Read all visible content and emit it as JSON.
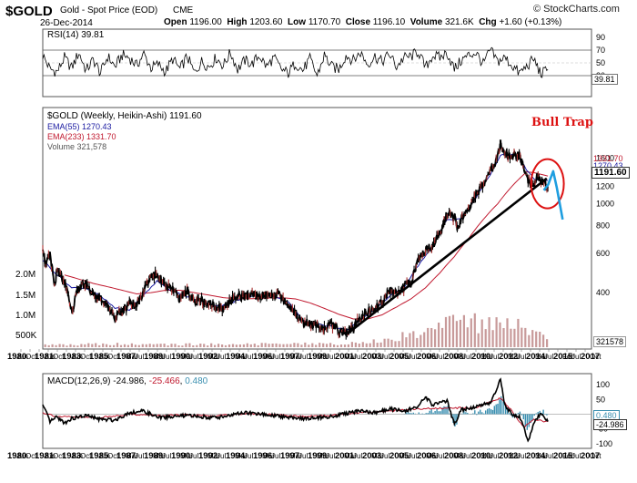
{
  "header": {
    "symbol": "$GOLD",
    "description": "Gold - Spot Price (EOD)",
    "exchange": "CME",
    "date": "26-Dec-2014",
    "watermark": "© StockCharts.com",
    "quote": {
      "open_label": "Open",
      "open": "1196.00",
      "high_label": "High",
      "high": "1203.60",
      "low_label": "Low",
      "low": "1170.70",
      "close_label": "Close",
      "close": "1196.10",
      "volume_label": "Volume",
      "volume": "321.6K",
      "chg_label": "Chg",
      "chg": "+1.60 (+0.13%)"
    }
  },
  "colors": {
    "price": "#000000",
    "ema55": "#1a1aa0",
    "ema233": "#c0182e",
    "volume": "#c89a9a",
    "macd_line": "#000000",
    "macd_signal": "#c0182e",
    "macd_hist": "#3a8fb0",
    "trendline": "#000000",
    "trap_circle": "#dd1111",
    "projection": "#1e9ee0",
    "annotation": "#dd1111"
  },
  "chart_data": [
    {
      "type": "line",
      "panel": "RSI",
      "title": "RSI(14) 39.81",
      "label": "RSI(14)",
      "last_value": 39.81,
      "last_label": "39.81",
      "ylim": [
        0,
        100
      ],
      "y_ticks": [
        30,
        50,
        70,
        90
      ],
      "y_tick_labels": [
        "30",
        "50",
        "70",
        "90"
      ],
      "reference_lines": [
        30,
        70
      ],
      "x": [
        1980.0,
        1980.5,
        1981.0,
        1981.5,
        1982.0,
        1982.5,
        1983.0,
        1983.5,
        1984.0,
        1984.5,
        1985.0,
        1985.5,
        1986.0,
        1986.5,
        1987.0,
        1987.5,
        1988.0,
        1988.5,
        1989.0,
        1989.5,
        1990.0,
        1990.5,
        1991.0,
        1991.5,
        1992.0,
        1992.5,
        1993.0,
        1993.5,
        1994.0,
        1994.5,
        1995.0,
        1995.5,
        1996.0,
        1996.5,
        1997.0,
        1997.5,
        1998.0,
        1998.5,
        1999.0,
        1999.5,
        2000.0,
        2000.5,
        2001.0,
        2001.5,
        2002.0,
        2002.5,
        2003.0,
        2003.5,
        2004.0,
        2004.5,
        2005.0,
        2005.5,
        2006.0,
        2006.5,
        2007.0,
        2007.5,
        2008.0,
        2008.5,
        2009.0,
        2009.5,
        2010.0,
        2010.5,
        2011.0,
        2011.5,
        2012.0,
        2012.5,
        2013.0,
        2013.5,
        2014.0,
        2014.5,
        2014.98
      ],
      "values": [
        62,
        40,
        36,
        58,
        42,
        66,
        38,
        55,
        34,
        60,
        44,
        62,
        58,
        46,
        64,
        42,
        48,
        36,
        56,
        40,
        60,
        34,
        52,
        44,
        58,
        46,
        66,
        40,
        54,
        48,
        62,
        44,
        58,
        40,
        34,
        50,
        38,
        56,
        30,
        62,
        44,
        40,
        62,
        54,
        66,
        48,
        60,
        52,
        64,
        44,
        58,
        60,
        68,
        42,
        62,
        58,
        66,
        40,
        54,
        62,
        66,
        48,
        70,
        52,
        58,
        46,
        34,
        44,
        56,
        32,
        39.81
      ]
    },
    {
      "type": "line",
      "panel": "Price",
      "title": "$GOLD (Weekly, Heikin-Ashi) 1191.60",
      "legend": [
        {
          "name": "$GOLD (Weekly, Heikin-Ashi)",
          "value": "1191.60"
        },
        {
          "name": "EMA(55)",
          "value": "1270.43"
        },
        {
          "name": "EMA(233)",
          "value": "1331.70"
        },
        {
          "name": "Volume",
          "value": "321,578"
        }
      ],
      "y_scale": "log",
      "ylim": [
        230,
        2600
      ],
      "y_ticks": [
        400,
        600,
        800,
        1000,
        1200,
        1400,
        1600
      ],
      "y_tick_labels": [
        "400",
        "600",
        "800",
        "1000",
        "1200",
        "1400",
        "1600"
      ],
      "right_tags": [
        {
          "value": 1331.7,
          "label": "1331.70",
          "color": "#c0182e"
        },
        {
          "value": 1270.43,
          "label": "1270.43",
          "color": "#1a1aa0"
        },
        {
          "value": 1191.6,
          "label": "1191.60",
          "color": "#000000"
        }
      ],
      "volume_axis_labels": [
        "2.0M",
        "1.5M",
        "1.0M",
        "500K"
      ],
      "volume_last_label": "321578",
      "x_tick_labels": [
        "1980",
        "Jun",
        "Oct",
        "1981",
        "Jun",
        "Oct",
        "1983",
        "Jun",
        "Oct",
        "1985",
        "Jun",
        "Oct",
        "1987",
        "Mar",
        "Jul",
        "1989",
        "Mar",
        "Jul",
        "1990",
        "Mar",
        "Jul",
        "1992",
        "Mar",
        "Jul",
        "1994",
        "Mar",
        "Jul",
        "1996",
        "Mar",
        "Jul",
        "1997",
        "Mar",
        "Jul",
        "1999",
        "Mar",
        "Jul",
        "2001",
        "Mar",
        "Jul",
        "2003",
        "Mar",
        "Jul",
        "2005",
        "Mar",
        "Jul",
        "2006",
        "Mar",
        "Jul",
        "2008",
        "Mar",
        "Jul",
        "2010",
        "Mar",
        "Jul",
        "2012",
        "Mar",
        "Jul",
        "2014",
        "Mar",
        "Jul",
        "2015",
        "Feb",
        "Jul",
        "2017",
        "Oct"
      ],
      "series": [
        {
          "name": "$GOLD (Weekly, Heikin-Ashi)",
          "x": [
            1980.0,
            1980.2,
            1980.5,
            1980.8,
            1981.0,
            1981.5,
            1982.0,
            1982.5,
            1983.0,
            1983.5,
            1984.0,
            1984.5,
            1985.0,
            1985.5,
            1986.0,
            1986.5,
            1987.0,
            1987.5,
            1987.9,
            1988.5,
            1989.0,
            1989.5,
            1990.0,
            1990.5,
            1991.0,
            1991.5,
            1992.0,
            1992.5,
            1993.0,
            1993.5,
            1994.0,
            1994.5,
            1995.0,
            1995.5,
            1996.0,
            1996.5,
            1997.0,
            1997.5,
            1998.0,
            1998.5,
            1999.0,
            1999.5,
            2000.0,
            2000.5,
            2001.0,
            2001.5,
            2002.0,
            2002.5,
            2003.0,
            2003.5,
            2004.0,
            2004.5,
            2005.0,
            2005.5,
            2006.0,
            2006.5,
            2007.0,
            2007.5,
            2008.0,
            2008.5,
            2008.8,
            2009.0,
            2009.5,
            2010.0,
            2010.5,
            2011.0,
            2011.4,
            2011.7,
            2012.0,
            2012.5,
            2013.0,
            2013.3,
            2013.5,
            2014.0,
            2014.3,
            2014.6,
            2014.98
          ],
          "values": [
            650,
            520,
            600,
            420,
            500,
            450,
            330,
            420,
            440,
            390,
            380,
            350,
            310,
            330,
            360,
            350,
            410,
            470,
            480,
            430,
            410,
            375,
            410,
            360,
            370,
            360,
            345,
            340,
            370,
            385,
            385,
            390,
            385,
            390,
            395,
            385,
            350,
            325,
            295,
            290,
            285,
            275,
            290,
            270,
            265,
            275,
            310,
            325,
            340,
            360,
            410,
            400,
            420,
            440,
            560,
            620,
            650,
            730,
            900,
            870,
            750,
            880,
            940,
            1100,
            1230,
            1400,
            1560,
            1800,
            1650,
            1620,
            1660,
            1450,
            1300,
            1230,
            1320,
            1260,
            1191.6
          ]
        },
        {
          "name": "EMA(55)",
          "x": [
            1980.0,
            1981.0,
            1982.0,
            1983.0,
            1984.0,
            1985.0,
            1986.0,
            1987.0,
            1987.9,
            1989.0,
            1990.0,
            1991.0,
            1992.0,
            1993.0,
            1994.0,
            1995.0,
            1996.0,
            1997.0,
            1998.0,
            1999.0,
            2000.0,
            2001.0,
            2002.0,
            2003.0,
            2004.0,
            2005.0,
            2006.0,
            2007.0,
            2008.0,
            2009.0,
            2010.0,
            2011.0,
            2011.7,
            2012.5,
            2013.0,
            2013.5,
            2014.0,
            2014.98
          ],
          "values": [
            560,
            480,
            420,
            420,
            385,
            340,
            335,
            390,
            450,
            405,
            385,
            365,
            348,
            358,
            382,
            386,
            390,
            362,
            300,
            290,
            282,
            272,
            300,
            335,
            385,
            420,
            530,
            640,
            850,
            860,
            1060,
            1350,
            1650,
            1660,
            1600,
            1420,
            1290,
            1270.43
          ]
        },
        {
          "name": "EMA(233)",
          "x": [
            1981.5,
            1982.5,
            1983.5,
            1984.5,
            1985.5,
            1986.5,
            1987.5,
            1988.5,
            1989.5,
            1990.5,
            1991.5,
            1992.5,
            1993.5,
            1994.5,
            1995.5,
            1996.5,
            1997.5,
            1998.5,
            1999.5,
            2000.5,
            2001.5,
            2002.5,
            2003.5,
            2004.5,
            2005.5,
            2006.5,
            2007.5,
            2008.5,
            2009.5,
            2010.5,
            2011.5,
            2012.5,
            2013.5,
            2014.0,
            2014.98
          ],
          "values": [
            480,
            460,
            440,
            425,
            410,
            395,
            400,
            410,
            410,
            400,
            390,
            380,
            375,
            376,
            378,
            380,
            375,
            360,
            340,
            320,
            305,
            305,
            318,
            345,
            375,
            420,
            490,
            580,
            700,
            850,
            1000,
            1200,
            1390,
            1380,
            1331.7
          ]
        }
      ],
      "annotations": [
        {
          "text": "Bull Trap",
          "type": "label"
        },
        {
          "type": "trendline",
          "from": {
            "x": 2001.1,
            "y": 262
          },
          "to": {
            "x": 2014.9,
            "y": 1300
          }
        },
        {
          "type": "circle",
          "center": {
            "x": 2014.95,
            "y": 1230
          }
        },
        {
          "type": "projection",
          "x": [
            2014.7,
            2015.0,
            2015.35,
            2015.6,
            2016.0
          ],
          "values": [
            1150,
            1220,
            1400,
            1180,
            850
          ]
        }
      ]
    },
    {
      "type": "bar",
      "panel": "Volume",
      "name": "Volume",
      "last_value": 321578,
      "x": [
        1980,
        1982,
        1984,
        1986,
        1988,
        1990,
        1992,
        1994,
        1996,
        1998,
        2000,
        2002,
        2004,
        2005,
        2006,
        2007,
        2008,
        2009,
        2010,
        2011,
        2012,
        2013,
        2014
      ],
      "values": [
        80000,
        100000,
        110000,
        120000,
        100000,
        110000,
        100000,
        120000,
        110000,
        120000,
        130000,
        150000,
        280000,
        400000,
        500000,
        600000,
        800000,
        900000,
        900000,
        1000000,
        900000,
        700000,
        450000
      ]
    },
    {
      "type": "line",
      "panel": "MACD",
      "title": "MACD(12,26,9) -24.986, -25.466, 0.480",
      "label": "MACD(12,26,9)",
      "values_label": [
        "-24.986",
        "-25.466",
        "0.480"
      ],
      "ylim": [
        -110,
        125
      ],
      "y_ticks": [
        -100,
        -50,
        0,
        50,
        100
      ],
      "y_tick_labels": [
        "-100",
        "-50",
        "0",
        "50",
        "100"
      ],
      "right_tags": [
        {
          "value": 0.48,
          "label": "0.480",
          "color": "#3a8fb0"
        },
        {
          "value": -24.986,
          "label": "-24.986",
          "color": "#000000"
        }
      ],
      "x_tick_labels": [
        "1980",
        "Jun",
        "Oct",
        "1981",
        "Jun",
        "Oct",
        "1983",
        "Jun",
        "Oct",
        "1985",
        "Jun",
        "Oct",
        "1987",
        "Mar",
        "Jul",
        "1989",
        "Mar",
        "Jul",
        "1990",
        "Mar",
        "Jul",
        "1992",
        "Mar",
        "Jul",
        "1994",
        "Mar",
        "Jul",
        "1996",
        "Mar",
        "Jul",
        "1997",
        "Mar",
        "Jul",
        "1999",
        "Mar",
        "Jul",
        "2001",
        "Mar",
        "Jul",
        "2003",
        "Mar",
        "Jul",
        "2005",
        "Mar",
        "Jul",
        "2006",
        "Mar",
        "Jul",
        "2008",
        "Mar",
        "Jul",
        "2010",
        "Mar",
        "Jul",
        "2012",
        "Mar",
        "Jul",
        "2014",
        "Mar",
        "Jul",
        "2015",
        "Feb",
        "Jul",
        "2017",
        "Oct"
      ],
      "series": [
        {
          "name": "MACD",
          "x": [
            1980.0,
            1980.5,
            1981.0,
            1981.5,
            1982.0,
            1983.0,
            1984.0,
            1985.0,
            1986.0,
            1987.0,
            1988.0,
            1990.0,
            1992.0,
            1994.0,
            1996.0,
            1998.0,
            2000.0,
            2002.0,
            2003.0,
            2004.0,
            2005.0,
            2006.0,
            2006.5,
            2007.0,
            2008.0,
            2008.5,
            2009.0,
            2010.0,
            2011.0,
            2011.5,
            2011.7,
            2012.0,
            2012.5,
            2013.0,
            2013.3,
            2013.6,
            2014.0,
            2014.5,
            2014.98
          ],
          "values": [
            30,
            -25,
            -10,
            -30,
            -15,
            -5,
            -18,
            -20,
            5,
            10,
            -12,
            -5,
            -12,
            5,
            -5,
            -15,
            -8,
            12,
            5,
            18,
            10,
            25,
            60,
            30,
            45,
            -35,
            15,
            25,
            40,
            90,
            120,
            30,
            0,
            -10,
            -40,
            -95,
            -30,
            5,
            -24.986
          ]
        },
        {
          "name": "Signal",
          "x": [
            1980.0,
            1981.0,
            1982.0,
            1984.0,
            1986.0,
            1988.0,
            1990.0,
            1992.0,
            1994.0,
            1996.0,
            1998.0,
            2000.0,
            2002.0,
            2004.0,
            2006.0,
            2008.0,
            2010.0,
            2011.7,
            2012.5,
            2013.3,
            2014.0,
            2014.98
          ],
          "values": [
            5,
            -8,
            -10,
            -12,
            0,
            -5,
            -3,
            -6,
            2,
            -2,
            -8,
            -4,
            6,
            10,
            18,
            20,
            22,
            55,
            10,
            -45,
            -20,
            -25.466
          ]
        },
        {
          "name": "Histogram",
          "x": [
            2005.0,
            2006.0,
            2007.0,
            2008.0,
            2008.5,
            2009.0,
            2010.0,
            2011.0,
            2011.7,
            2012.0,
            2012.5,
            2013.0,
            2013.5,
            2014.0,
            2014.5,
            2014.98
          ],
          "values": [
            3,
            7,
            10,
            25,
            -40,
            10,
            5,
            15,
            55,
            20,
            -10,
            5,
            -50,
            -10,
            10,
            0.48
          ]
        }
      ]
    }
  ]
}
